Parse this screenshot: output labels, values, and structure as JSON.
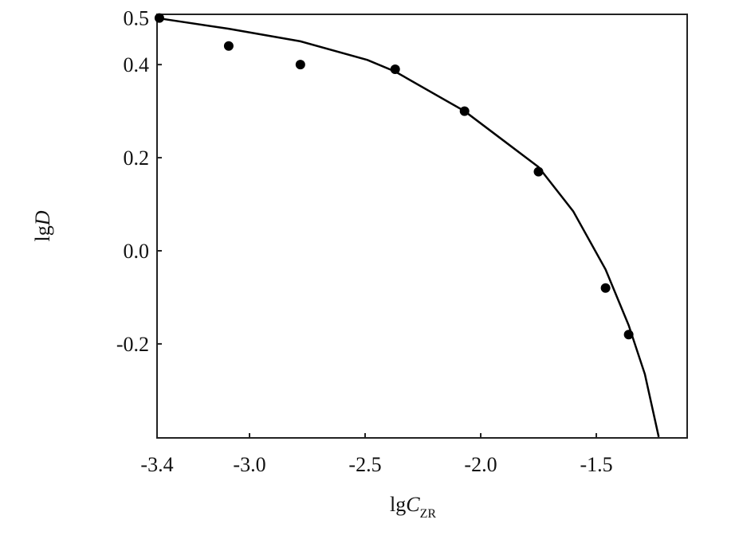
{
  "chart_data": {
    "type": "scatter",
    "x_label": [
      "lg",
      "C",
      "ZR"
    ],
    "y_label": [
      "lg",
      "D"
    ],
    "xlim": [
      -3.4,
      -1.107
    ],
    "ylim": [
      -0.402,
      0.508
    ],
    "xticks": [
      -3.4,
      {
        "value": -3,
        "label": "-3.0"
      },
      -2.5,
      {
        "value": -2,
        "label": "-2.0"
      },
      -1.5
    ],
    "yticks": [
      {
        "value": 0.5,
        "label": "0.5"
      },
      0.4,
      0.2,
      {
        "value": 0,
        "label": "0.0"
      },
      -0.2
    ],
    "series": [
      {
        "mode": "markers",
        "color": "#000000",
        "x": [
          -3.39,
          -3.09,
          -2.78,
          -2.37,
          -2.07,
          -1.75,
          -1.46,
          -1.36
        ],
        "values": [
          0.5,
          0.44,
          0.4,
          0.39,
          0.3,
          0.17,
          -0.08,
          -0.18
        ]
      },
      {
        "mode": "line",
        "color": "#000000",
        "x": [
          -3.4,
          -3.09,
          -2.78,
          -2.49,
          -2.37,
          -2.07,
          -1.75,
          -1.6,
          -1.46,
          -1.36,
          -1.29,
          -1.23
        ],
        "values": [
          0.5,
          0.477,
          0.45,
          0.41,
          0.385,
          0.3,
          0.18,
          0.085,
          -0.04,
          -0.16,
          -0.265,
          -0.4
        ]
      }
    ]
  }
}
